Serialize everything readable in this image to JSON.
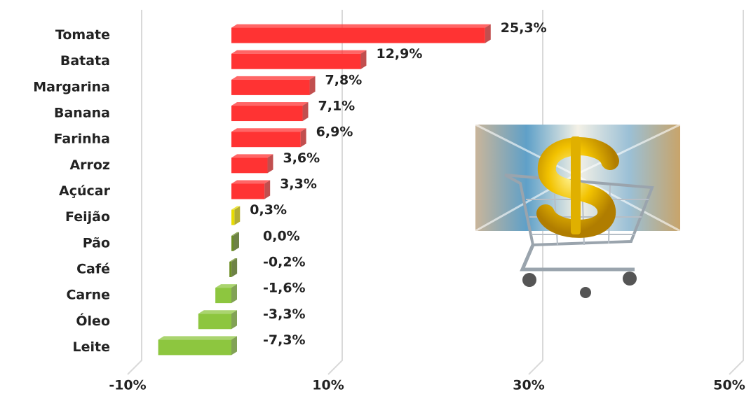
{
  "chart_data": {
    "type": "barh",
    "categories": [
      "Tomate",
      "Batata",
      "Margarina",
      "Banana",
      "Farinha",
      "Arroz",
      "Açúcar",
      "Feijão",
      "Pão",
      "Café",
      "Carne",
      "Óleo",
      "Leite"
    ],
    "values": [
      25.3,
      12.9,
      7.8,
      7.1,
      6.9,
      3.6,
      3.3,
      0.3,
      0.0,
      -0.2,
      -1.6,
      -3.3,
      -7.3
    ],
    "value_labels": [
      "25,3%",
      "12,9%",
      "7,8%",
      "7,1%",
      "6,9%",
      "3,6%",
      "3,3%",
      "0,3%",
      "0,0%",
      "-0,2%",
      "-1,6%",
      "-3,3%",
      "-7,3%"
    ],
    "colors": [
      "#ff3333",
      "#ff3333",
      "#ff3333",
      "#ff3333",
      "#ff3333",
      "#ff3333",
      "#ff3333",
      "#e8dc00",
      "#6b8e23",
      "#6b8e23",
      "#8dc63f",
      "#8dc63f",
      "#8dc63f"
    ],
    "xlim": [
      -10,
      50
    ],
    "xticks": [
      {
        "value": -10,
        "label": "-10%"
      },
      {
        "value": 10,
        "label": "10%"
      },
      {
        "value": 30,
        "label": "30%"
      },
      {
        "value": 50,
        "label": "50%"
      }
    ],
    "grid": true
  }
}
